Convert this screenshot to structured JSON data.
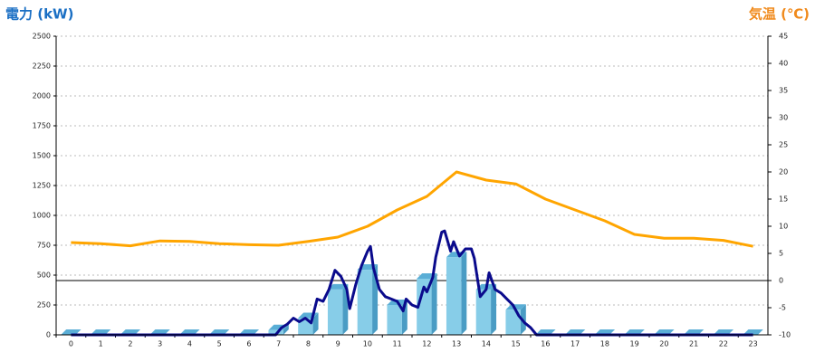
{
  "chart_data": {
    "type": "bar",
    "y_title": "電力 (kW)",
    "y2_title": "気温 (℃)",
    "categories": [
      "0",
      "1",
      "2",
      "3",
      "4",
      "5",
      "6",
      "7",
      "8",
      "9",
      "10",
      "11",
      "12",
      "13",
      "14",
      "15",
      "16",
      "17",
      "18",
      "19",
      "20",
      "21",
      "22",
      "23"
    ],
    "ylim": [
      0,
      2500
    ],
    "yticks": [
      0,
      250,
      500,
      750,
      1000,
      1250,
      1500,
      1750,
      2000,
      2250,
      2500
    ],
    "y2lim": [
      -10,
      45
    ],
    "y2ticks": [
      -10,
      -5,
      0,
      5,
      10,
      15,
      20,
      25,
      30,
      35,
      40,
      45
    ],
    "grid": true,
    "series": [
      {
        "type": "bar",
        "color": "#87cde8",
        "values": [
          0,
          0,
          0,
          0,
          0,
          0,
          0,
          40,
          140,
          380,
          545,
          250,
          470,
          650,
          380,
          210,
          0,
          0,
          0,
          0,
          0,
          0,
          0,
          0
        ]
      },
      {
        "type": "line",
        "color": "#0a0a8c",
        "x": [
          0,
          6.9,
          7.1,
          7.3,
          7.5,
          7.7,
          7.9,
          8.1,
          8.3,
          8.5,
          8.7,
          8.9,
          9.1,
          9.3,
          9.4,
          9.6,
          9.8,
          10.0,
          10.1,
          10.2,
          10.4,
          10.6,
          10.8,
          11.0,
          11.2,
          11.3,
          11.5,
          11.7,
          11.9,
          12.0,
          12.2,
          12.3,
          12.5,
          12.6,
          12.8,
          12.9,
          13.1,
          13.3,
          13.5,
          13.6,
          13.8,
          14.0,
          14.1,
          14.3,
          14.5,
          14.7,
          14.9,
          15.1,
          15.3,
          15.5,
          15.7,
          23
        ],
        "values": [
          0,
          0,
          60,
          90,
          140,
          110,
          140,
          100,
          300,
          280,
          380,
          540,
          490,
          380,
          220,
          420,
          580,
          700,
          740,
          560,
          380,
          320,
          300,
          280,
          200,
          300,
          250,
          230,
          400,
          360,
          480,
          650,
          860,
          870,
          700,
          780,
          660,
          720,
          720,
          640,
          320,
          380,
          520,
          380,
          350,
          300,
          250,
          160,
          100,
          60,
          0,
          0
        ]
      },
      {
        "type": "line",
        "color": "#ffa500",
        "axis": "y2",
        "values": [
          7,
          6.8,
          6.4,
          7.3,
          7.2,
          6.8,
          6.6,
          6.5,
          7.2,
          8,
          10,
          13,
          15.5,
          20,
          18.5,
          17.8,
          15,
          13,
          11,
          8.5,
          7.8,
          7.8,
          7.4,
          6.3
        ]
      }
    ]
  }
}
